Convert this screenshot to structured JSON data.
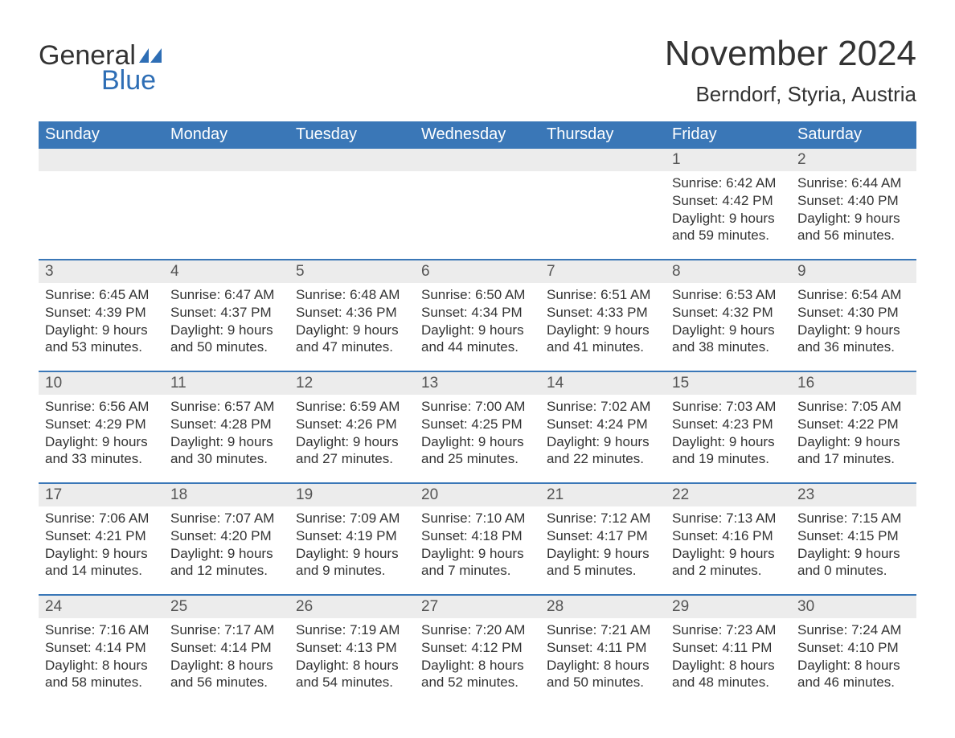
{
  "logo": {
    "word1": "General",
    "word2": "Blue",
    "sail_color": "#2e6eb5"
  },
  "title": {
    "month": "November 2024",
    "location": "Berndorf, Styria, Austria"
  },
  "colors": {
    "header_bg": "#3a77b7",
    "header_text": "#ffffff",
    "daynum_bg": "#ececec",
    "week_divider": "#3a77b7",
    "text": "#333333"
  },
  "layout": {
    "columns": 7,
    "rows": 5
  },
  "day_headers": [
    "Sunday",
    "Monday",
    "Tuesday",
    "Wednesday",
    "Thursday",
    "Friday",
    "Saturday"
  ],
  "weeks": [
    {
      "days": [
        {
          "empty": true
        },
        {
          "empty": true
        },
        {
          "empty": true
        },
        {
          "empty": true
        },
        {
          "empty": true
        },
        {
          "num": "1",
          "sunrise": "6:42 AM",
          "sunset": "4:42 PM",
          "dl_h": "9",
          "dl_m": "59"
        },
        {
          "num": "2",
          "sunrise": "6:44 AM",
          "sunset": "4:40 PM",
          "dl_h": "9",
          "dl_m": "56"
        }
      ]
    },
    {
      "days": [
        {
          "num": "3",
          "sunrise": "6:45 AM",
          "sunset": "4:39 PM",
          "dl_h": "9",
          "dl_m": "53"
        },
        {
          "num": "4",
          "sunrise": "6:47 AM",
          "sunset": "4:37 PM",
          "dl_h": "9",
          "dl_m": "50"
        },
        {
          "num": "5",
          "sunrise": "6:48 AM",
          "sunset": "4:36 PM",
          "dl_h": "9",
          "dl_m": "47"
        },
        {
          "num": "6",
          "sunrise": "6:50 AM",
          "sunset": "4:34 PM",
          "dl_h": "9",
          "dl_m": "44"
        },
        {
          "num": "7",
          "sunrise": "6:51 AM",
          "sunset": "4:33 PM",
          "dl_h": "9",
          "dl_m": "41"
        },
        {
          "num": "8",
          "sunrise": "6:53 AM",
          "sunset": "4:32 PM",
          "dl_h": "9",
          "dl_m": "38"
        },
        {
          "num": "9",
          "sunrise": "6:54 AM",
          "sunset": "4:30 PM",
          "dl_h": "9",
          "dl_m": "36"
        }
      ]
    },
    {
      "days": [
        {
          "num": "10",
          "sunrise": "6:56 AM",
          "sunset": "4:29 PM",
          "dl_h": "9",
          "dl_m": "33"
        },
        {
          "num": "11",
          "sunrise": "6:57 AM",
          "sunset": "4:28 PM",
          "dl_h": "9",
          "dl_m": "30"
        },
        {
          "num": "12",
          "sunrise": "6:59 AM",
          "sunset": "4:26 PM",
          "dl_h": "9",
          "dl_m": "27"
        },
        {
          "num": "13",
          "sunrise": "7:00 AM",
          "sunset": "4:25 PM",
          "dl_h": "9",
          "dl_m": "25"
        },
        {
          "num": "14",
          "sunrise": "7:02 AM",
          "sunset": "4:24 PM",
          "dl_h": "9",
          "dl_m": "22"
        },
        {
          "num": "15",
          "sunrise": "7:03 AM",
          "sunset": "4:23 PM",
          "dl_h": "9",
          "dl_m": "19"
        },
        {
          "num": "16",
          "sunrise": "7:05 AM",
          "sunset": "4:22 PM",
          "dl_h": "9",
          "dl_m": "17"
        }
      ]
    },
    {
      "days": [
        {
          "num": "17",
          "sunrise": "7:06 AM",
          "sunset": "4:21 PM",
          "dl_h": "9",
          "dl_m": "14"
        },
        {
          "num": "18",
          "sunrise": "7:07 AM",
          "sunset": "4:20 PM",
          "dl_h": "9",
          "dl_m": "12"
        },
        {
          "num": "19",
          "sunrise": "7:09 AM",
          "sunset": "4:19 PM",
          "dl_h": "9",
          "dl_m": "9"
        },
        {
          "num": "20",
          "sunrise": "7:10 AM",
          "sunset": "4:18 PM",
          "dl_h": "9",
          "dl_m": "7"
        },
        {
          "num": "21",
          "sunrise": "7:12 AM",
          "sunset": "4:17 PM",
          "dl_h": "9",
          "dl_m": "5"
        },
        {
          "num": "22",
          "sunrise": "7:13 AM",
          "sunset": "4:16 PM",
          "dl_h": "9",
          "dl_m": "2"
        },
        {
          "num": "23",
          "sunrise": "7:15 AM",
          "sunset": "4:15 PM",
          "dl_h": "9",
          "dl_m": "0"
        }
      ]
    },
    {
      "days": [
        {
          "num": "24",
          "sunrise": "7:16 AM",
          "sunset": "4:14 PM",
          "dl_h": "8",
          "dl_m": "58"
        },
        {
          "num": "25",
          "sunrise": "7:17 AM",
          "sunset": "4:14 PM",
          "dl_h": "8",
          "dl_m": "56"
        },
        {
          "num": "26",
          "sunrise": "7:19 AM",
          "sunset": "4:13 PM",
          "dl_h": "8",
          "dl_m": "54"
        },
        {
          "num": "27",
          "sunrise": "7:20 AM",
          "sunset": "4:12 PM",
          "dl_h": "8",
          "dl_m": "52"
        },
        {
          "num": "28",
          "sunrise": "7:21 AM",
          "sunset": "4:11 PM",
          "dl_h": "8",
          "dl_m": "50"
        },
        {
          "num": "29",
          "sunrise": "7:23 AM",
          "sunset": "4:11 PM",
          "dl_h": "8",
          "dl_m": "48"
        },
        {
          "num": "30",
          "sunrise": "7:24 AM",
          "sunset": "4:10 PM",
          "dl_h": "8",
          "dl_m": "46"
        }
      ]
    }
  ],
  "labels": {
    "sunrise": "Sunrise:",
    "sunset": "Sunset:",
    "daylight": "Daylight:",
    "hours": "hours",
    "and": "and",
    "minutes": "minutes."
  }
}
